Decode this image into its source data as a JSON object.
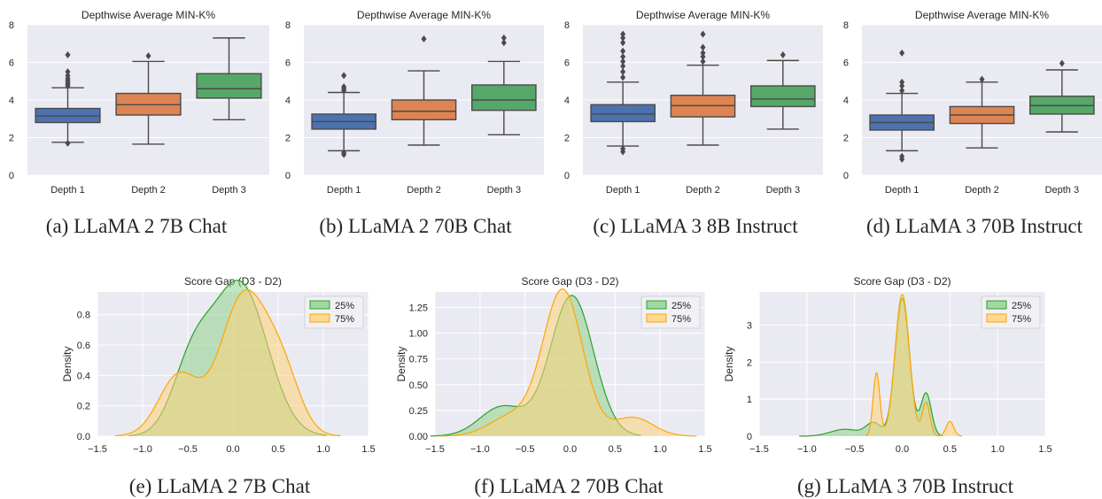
{
  "colors": {
    "plot_bg": "#eaeaf2",
    "grid": "#ffffff",
    "text": "#262626",
    "box_line": "#4a4a4a",
    "depth1": "#4c72b0",
    "depth2": "#dd8452",
    "depth3": "#55a868",
    "kde25_line": "#2ca02c",
    "kde25_fill": "#8fd18b",
    "kde75_line": "#ffa500",
    "kde75_fill": "#ffd27a"
  },
  "chart_data": [
    {
      "type": "box",
      "title": "Depthwise Average MIN-K%",
      "caption": "(a) LLaMA 2 7B Chat",
      "categories": [
        "Depth 1",
        "Depth 2",
        "Depth 3"
      ],
      "ylim": [
        0,
        8
      ],
      "yticks": [
        "0",
        "2",
        "4",
        "6",
        "8"
      ],
      "boxes": [
        {
          "q1": 2.8,
          "median": 3.15,
          "q3": 3.55,
          "whislo": 1.75,
          "whishi": 4.65,
          "fliers": [
            1.7,
            4.75,
            4.85,
            4.95,
            5.05,
            5.15,
            5.3,
            5.5,
            6.4
          ]
        },
        {
          "q1": 3.2,
          "median": 3.75,
          "q3": 4.35,
          "whislo": 1.65,
          "whishi": 6.05,
          "fliers": [
            6.35
          ]
        },
        {
          "q1": 4.1,
          "median": 4.6,
          "q3": 5.4,
          "whislo": 2.95,
          "whishi": 7.3,
          "fliers": []
        }
      ]
    },
    {
      "type": "box",
      "title": "Depthwise Average MIN-K%",
      "caption": "(b) LLaMA 2 70B Chat",
      "categories": [
        "Depth 1",
        "Depth 2",
        "Depth 3"
      ],
      "ylim": [
        0,
        8
      ],
      "yticks": [
        "0",
        "2",
        "4",
        "6",
        "8"
      ],
      "boxes": [
        {
          "q1": 2.45,
          "median": 2.85,
          "q3": 3.25,
          "whislo": 1.3,
          "whishi": 4.4,
          "fliers": [
            1.1,
            1.2,
            4.5,
            4.6,
            4.7,
            5.3
          ]
        },
        {
          "q1": 2.95,
          "median": 3.4,
          "q3": 4.0,
          "whislo": 1.6,
          "whishi": 5.55,
          "fliers": [
            7.25
          ]
        },
        {
          "q1": 3.45,
          "median": 4.0,
          "q3": 4.8,
          "whislo": 2.15,
          "whishi": 6.05,
          "fliers": [
            7.05,
            7.3
          ]
        }
      ]
    },
    {
      "type": "box",
      "title": "Depthwise Average MIN-K%",
      "caption": "(c) LLaMA 3 8B Instruct",
      "categories": [
        "Depth 1",
        "Depth 2",
        "Depth 3"
      ],
      "ylim": [
        0,
        8
      ],
      "yticks": [
        "0",
        "2",
        "4",
        "6",
        "8"
      ],
      "boxes": [
        {
          "q1": 2.85,
          "median": 3.25,
          "q3": 3.75,
          "whislo": 1.55,
          "whishi": 4.95,
          "fliers": [
            1.25,
            1.4,
            5.2,
            5.5,
            5.8,
            6.05,
            6.3,
            6.6,
            7.05,
            7.3,
            7.5
          ]
        },
        {
          "q1": 3.1,
          "median": 3.7,
          "q3": 4.25,
          "whislo": 1.6,
          "whishi": 5.85,
          "fliers": [
            6.05,
            6.3,
            6.5,
            6.8,
            7.5
          ]
        },
        {
          "q1": 3.65,
          "median": 4.05,
          "q3": 4.75,
          "whislo": 2.45,
          "whishi": 6.1,
          "fliers": [
            6.4
          ]
        }
      ]
    },
    {
      "type": "box",
      "title": "Depthwise Average MIN-K%",
      "caption": "(d) LLaMA 3 70B Instruct",
      "categories": [
        "Depth 1",
        "Depth 2",
        "Depth 3"
      ],
      "ylim": [
        0,
        8
      ],
      "yticks": [
        "0",
        "2",
        "4",
        "6",
        "8"
      ],
      "boxes": [
        {
          "q1": 2.4,
          "median": 2.8,
          "q3": 3.2,
          "whislo": 1.3,
          "whishi": 4.35,
          "fliers": [
            0.85,
            1.0,
            4.5,
            4.75,
            4.95,
            6.5
          ]
        },
        {
          "q1": 2.75,
          "median": 3.2,
          "q3": 3.65,
          "whislo": 1.45,
          "whishi": 4.95,
          "fliers": [
            5.1
          ]
        },
        {
          "q1": 3.25,
          "median": 3.7,
          "q3": 4.2,
          "whislo": 2.3,
          "whishi": 5.6,
          "fliers": [
            5.95
          ]
        }
      ]
    },
    {
      "type": "kde",
      "title": "Score Gap (D3 - D2)",
      "caption": "(e) LLaMA 2 7B Chat",
      "ylabel": "Density",
      "xlim": [
        -1.5,
        1.5
      ],
      "ylim": [
        0,
        0.95
      ],
      "xticks": [
        -1.5,
        -1.0,
        -0.5,
        0.0,
        0.5,
        1.0,
        1.5
      ],
      "xtick_labels": [
        "−1.5",
        "−1.0",
        "−0.5",
        "0.0",
        "0.5",
        "1.0",
        "1.5"
      ],
      "yticks": [
        0,
        0.2,
        0.4,
        0.6,
        0.8
      ],
      "ytick_labels": [
        "0.0",
        "0.2",
        "0.4",
        "0.6",
        "0.8"
      ],
      "legend": [
        "25%",
        "75%"
      ],
      "legend_loc": "top-right",
      "series": [
        {
          "name": "25%",
          "components": [
            {
              "w": 0.75,
              "mu": 0.08,
              "sigma": 0.3
            },
            {
              "w": 0.25,
              "mu": -0.45,
              "sigma": 0.22
            }
          ]
        },
        {
          "name": "75%",
          "components": [
            {
              "w": 0.6,
              "mu": 0.12,
              "sigma": 0.26
            },
            {
              "w": 0.22,
              "mu": -0.6,
              "sigma": 0.22
            },
            {
              "w": 0.18,
              "mu": 0.55,
              "sigma": 0.2
            }
          ]
        }
      ]
    },
    {
      "type": "kde",
      "title": "Score Gap (D3 - D2)",
      "caption": "(f) LLaMA 2 70B Chat",
      "ylabel": "Density",
      "xlim": [
        -1.5,
        1.5
      ],
      "ylim": [
        0,
        1.4
      ],
      "xticks": [
        -1.5,
        -1.0,
        -0.5,
        0.0,
        0.5,
        1.0,
        1.5
      ],
      "xtick_labels": [
        "−1.5",
        "−1.0",
        "−0.5",
        "0.0",
        "0.5",
        "1.0",
        "1.5"
      ],
      "yticks": [
        0,
        0.25,
        0.5,
        0.75,
        1.0,
        1.25
      ],
      "ytick_labels": [
        "0.00",
        "0.25",
        "0.50",
        "0.75",
        "1.00",
        "1.25"
      ],
      "legend": [
        "25%",
        "75%"
      ],
      "legend_loc": "top-right",
      "series": [
        {
          "name": "25%",
          "components": [
            {
              "w": 0.82,
              "mu": 0.02,
              "sigma": 0.24
            },
            {
              "w": 0.18,
              "mu": -0.75,
              "sigma": 0.25
            }
          ]
        },
        {
          "name": "75%",
          "components": [
            {
              "w": 0.78,
              "mu": -0.08,
              "sigma": 0.22
            },
            {
              "w": 0.12,
              "mu": -0.65,
              "sigma": 0.25
            },
            {
              "w": 0.1,
              "mu": 0.7,
              "sigma": 0.22
            }
          ]
        }
      ]
    },
    {
      "type": "kde",
      "title": "Score Gap (D3 - D2)",
      "caption": "(g) LLaMA 3 70B Instruct",
      "ylabel": "Density",
      "xlim": [
        -1.5,
        1.5
      ],
      "ylim": [
        0,
        3.9
      ],
      "xticks": [
        -1.5,
        -1.0,
        -0.5,
        0.0,
        0.5,
        1.0,
        1.5
      ],
      "xtick_labels": [
        "−1.5",
        "−1.0",
        "−0.5",
        "0.0",
        "0.5",
        "1.0",
        "1.5"
      ],
      "yticks": [
        0,
        1,
        2,
        3
      ],
      "ytick_labels": [
        "0",
        "1",
        "2",
        "3"
      ],
      "legend": [
        "25%",
        "75%"
      ],
      "legend_loc": "top-right",
      "series": [
        {
          "name": "25%",
          "components": [
            {
              "w": 0.7,
              "mu": 0.0,
              "sigma": 0.075
            },
            {
              "w": 0.16,
              "mu": 0.25,
              "sigma": 0.055
            },
            {
              "w": 0.07,
              "mu": -0.3,
              "sigma": 0.08
            },
            {
              "w": 0.07,
              "mu": -0.6,
              "sigma": 0.15
            }
          ]
        },
        {
          "name": "75%",
          "components": [
            {
              "w": 0.72,
              "mu": 0.0,
              "sigma": 0.075
            },
            {
              "w": 0.15,
              "mu": -0.27,
              "sigma": 0.035
            },
            {
              "w": 0.09,
              "mu": 0.25,
              "sigma": 0.04
            },
            {
              "w": 0.04,
              "mu": 0.5,
              "sigma": 0.04
            }
          ]
        }
      ]
    }
  ]
}
